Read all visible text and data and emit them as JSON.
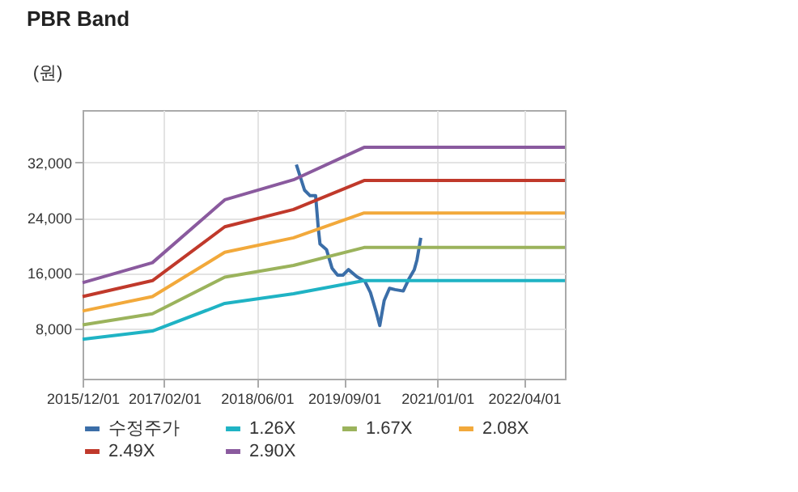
{
  "chart_data": {
    "type": "line",
    "title": "PBR Band",
    "ylabel": "(원)",
    "xlim": [
      "2015-12-01",
      "2022-11-01"
    ],
    "xticks": [
      {
        "value": "2015-12-01",
        "label": "2015/12/01"
      },
      {
        "value": "2017-02-01",
        "label": "2017/02/01"
      },
      {
        "value": "2018-06-01",
        "label": "2018/06/01"
      },
      {
        "value": "2019-09-01",
        "label": "2019/09/01"
      },
      {
        "value": "2021-01-01",
        "label": "2021/01/01"
      },
      {
        "value": "2022-04-01",
        "label": "2022/04/01"
      }
    ],
    "ylim": [
      700,
      39600
    ],
    "yticks": [
      {
        "value": 8000,
        "label": "8,000"
      },
      {
        "value": 16000,
        "label": "16,000"
      },
      {
        "value": 24000,
        "label": "24,000"
      },
      {
        "value": 32000,
        "label": "32,000"
      }
    ],
    "grid": true,
    "legend": "bottom",
    "marker": "none",
    "line_style": "solid",
    "series": [
      {
        "name": "수정주가",
        "color": "#3b6ea8",
        "x": [
          "2018-12-25",
          "2019-02-06",
          "2019-03-07",
          "2019-04-05",
          "2019-04-19",
          "2019-04-28",
          "2019-06-01",
          "2019-06-30",
          "2019-07-29",
          "2019-08-26",
          "2019-09-24",
          "2019-11-06",
          "2019-12-19",
          "2020-01-17",
          "2020-02-15",
          "2020-03-06",
          "2020-03-29",
          "2020-04-26",
          "2020-05-25",
          "2020-07-07",
          "2020-08-05",
          "2020-09-03",
          "2020-09-17",
          "2020-10-07"
        ],
        "values": [
          31700,
          28000,
          27200,
          27200,
          22500,
          20200,
          19400,
          16700,
          15700,
          15700,
          16500,
          15500,
          14800,
          13200,
          10500,
          8400,
          12000,
          13800,
          13600,
          13400,
          15100,
          16500,
          17900,
          21100
        ]
      },
      {
        "name": "1.26X",
        "color": "#1fb3c4",
        "x": [
          "2015-12-01",
          "2016-12-01",
          "2017-12-15",
          "2018-12-10",
          "2019-12-15",
          "2022-11-01"
        ],
        "values": [
          6400,
          7600,
          11600,
          13000,
          14900,
          14900
        ]
      },
      {
        "name": "1.67X",
        "color": "#9bb35c",
        "x": [
          "2015-12-01",
          "2016-12-01",
          "2017-12-15",
          "2018-12-10",
          "2019-12-15",
          "2022-11-01"
        ],
        "values": [
          8500,
          10100,
          15400,
          17100,
          19700,
          19700
        ]
      },
      {
        "name": "2.08X",
        "color": "#f2a93b",
        "x": [
          "2015-12-01",
          "2016-12-01",
          "2017-12-15",
          "2018-12-10",
          "2019-12-15",
          "2022-11-01"
        ],
        "values": [
          10500,
          12600,
          19000,
          21100,
          24700,
          24700
        ]
      },
      {
        "name": "2.49X",
        "color": "#c0392b",
        "x": [
          "2015-12-01",
          "2016-12-01",
          "2017-12-15",
          "2018-12-10",
          "2019-12-15",
          "2022-11-01"
        ],
        "values": [
          12600,
          14900,
          22700,
          25200,
          29400,
          29400
        ]
      },
      {
        "name": "2.90X",
        "color": "#8a5a9e",
        "x": [
          "2015-12-01",
          "2016-12-01",
          "2017-12-15",
          "2018-12-10",
          "2019-12-15",
          "2022-11-01"
        ],
        "values": [
          14600,
          17500,
          26600,
          29500,
          34200,
          34200
        ]
      }
    ]
  }
}
